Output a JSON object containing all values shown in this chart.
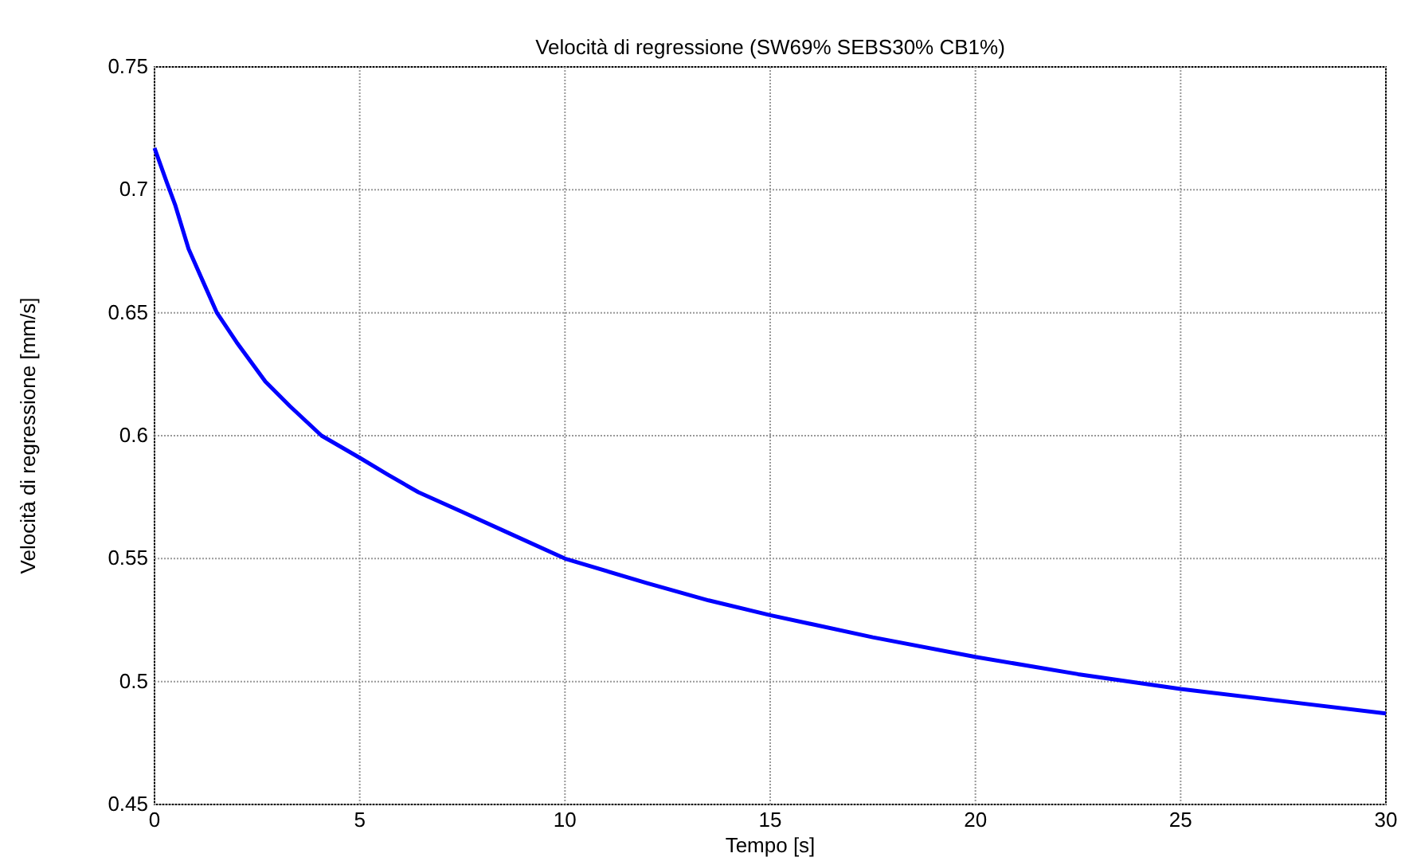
{
  "chart_data": {
    "type": "line",
    "title": "Velocità di regressione (SW69% SEBS30% CB1%)",
    "xlabel": "Tempo [s]",
    "ylabel": "Velocità di regressione [mm/s]",
    "x": [
      0,
      0.3,
      0.5,
      0.83,
      1.2,
      1.52,
      2.0,
      2.7,
      3.3,
      4.07,
      5,
      5.7,
      6.43,
      7.5,
      8.55,
      10,
      12,
      13.5,
      15,
      17.5,
      20,
      22.5,
      25,
      27.5,
      30
    ],
    "series": [
      {
        "color": "#0000ff",
        "values": [
          0.717,
          0.703,
          0.694,
          0.676,
          0.662,
          0.65,
          0.638,
          0.622,
          0.612,
          0.6,
          0.591,
          0.584,
          0.577,
          0.569,
          0.561,
          0.55,
          0.54,
          0.533,
          0.527,
          0.518,
          0.51,
          0.503,
          0.497,
          0.492,
          0.487
        ]
      }
    ],
    "xlim": [
      0,
      30
    ],
    "ylim": [
      0.45,
      0.75
    ],
    "xticks": [
      0,
      5,
      10,
      15,
      20,
      25,
      30
    ],
    "yticks": [
      0.45,
      0.5,
      0.55,
      0.6,
      0.65,
      0.7,
      0.75
    ],
    "grid": true,
    "line_style": "solid",
    "marker": "none"
  }
}
